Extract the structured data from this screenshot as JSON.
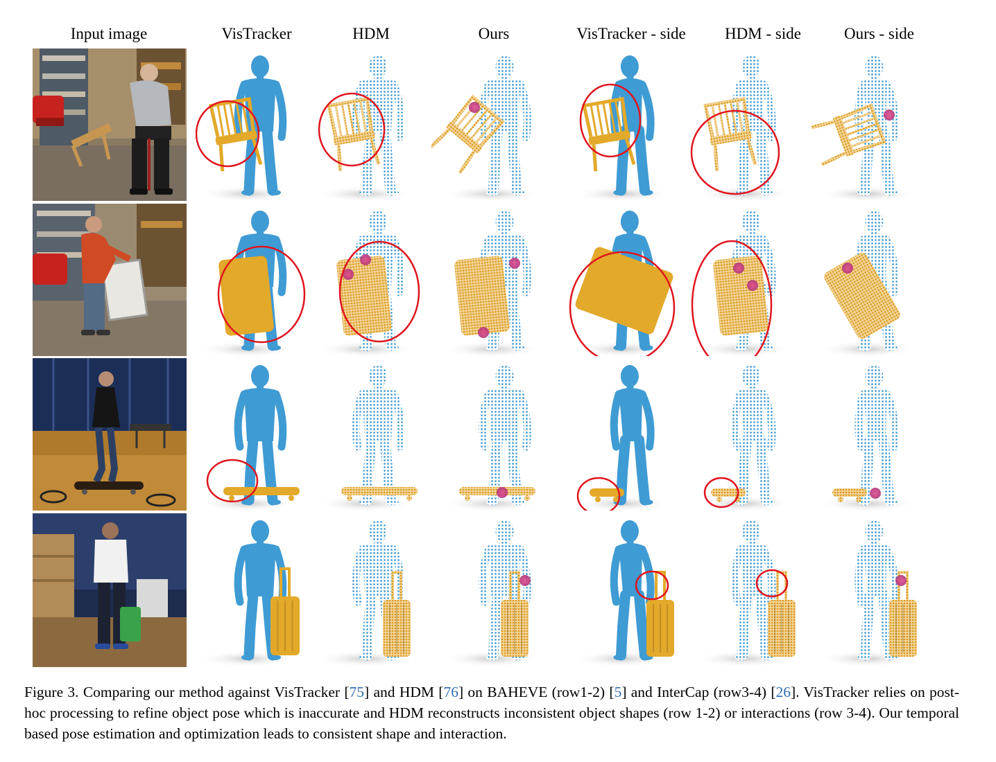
{
  "figure": {
    "headers": [
      "Input image",
      "VisTracker",
      "HDM",
      "Ours",
      "VisTracker - side",
      "HDM - side",
      "Ours - side"
    ],
    "colors": {
      "body": "#3f9bd3",
      "object": "#e3a92a",
      "error_circle": "#e0141e",
      "contact": "#d0407a"
    },
    "rows": [
      {
        "object": "chair"
      },
      {
        "object": "chair"
      },
      {
        "object": "skateboard"
      },
      {
        "object": "suitcase"
      }
    ]
  },
  "caption": {
    "t1": "Figure 3. Comparing our method against VisTracker [",
    "c1": "75",
    "t2": "] and HDM [",
    "c2": "76",
    "t3": "] on BAHEVE (row1-2) [",
    "c3": "5",
    "t4": "] and InterCap (row3-4) [",
    "c4": "26",
    "t5": "]. VisTracker relies on post-hoc processing to refine object pose which is inaccurate and HDM reconstructs inconsistent object shapes (row 1-2) or interactions (row 3-4). Our temporal based pose estimation and optimization leads to consistent shape and interaction."
  }
}
